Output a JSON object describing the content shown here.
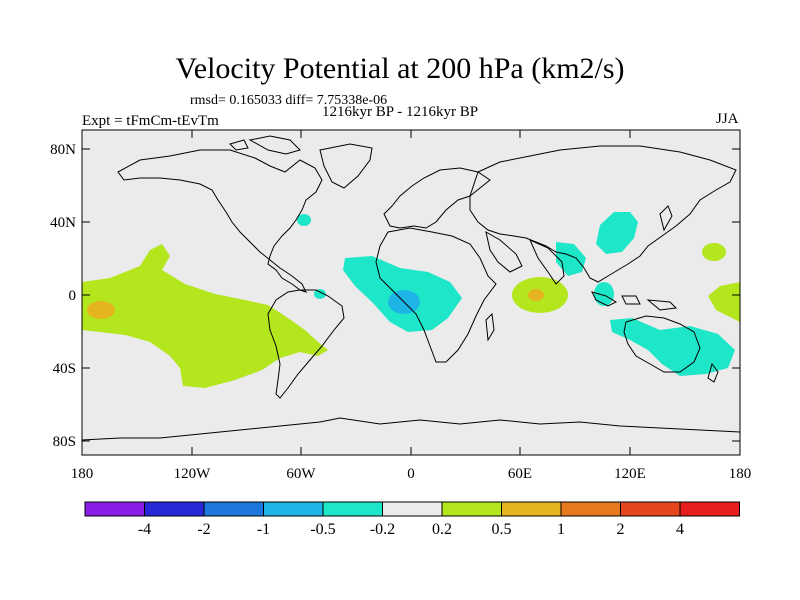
{
  "figure": {
    "title": "Velocity Potential at 200 hPa (km2/s)",
    "stats": "rmsd= 0.165033 diff= 7.75338e-06",
    "experiment": "Expt = tFmCm-tEvTm",
    "period": "1216kyr BP - 1216kyr BP",
    "season": "JJA"
  },
  "axes": {
    "y_ticks": [
      "80N",
      "40N",
      "0",
      "40S",
      "80S"
    ],
    "x_ticks": [
      "180",
      "120W",
      "60W",
      "0",
      "60E",
      "120E",
      "180"
    ]
  },
  "colorbar": {
    "colors": [
      "#8a1ee6",
      "#2828d8",
      "#1e78dc",
      "#1eb4e6",
      "#1ee6c8",
      "#ebebeb",
      "#b4e61e",
      "#e6b41e",
      "#e6781e",
      "#e6461e",
      "#e61e1e"
    ],
    "labels": [
      "-4",
      "-2",
      "-1",
      "-0.5",
      "-0.2",
      "0.2",
      "0.5",
      "1",
      "2",
      "4"
    ]
  },
  "map_fill": {
    "background": "#ebebeb",
    "positive_weak": "#b4e61e",
    "positive_mid": "#e6b41e",
    "positive_strong": "#e6781e",
    "negative_weak": "#1ee6c8",
    "negative_mid": "#1eb4e6"
  }
}
